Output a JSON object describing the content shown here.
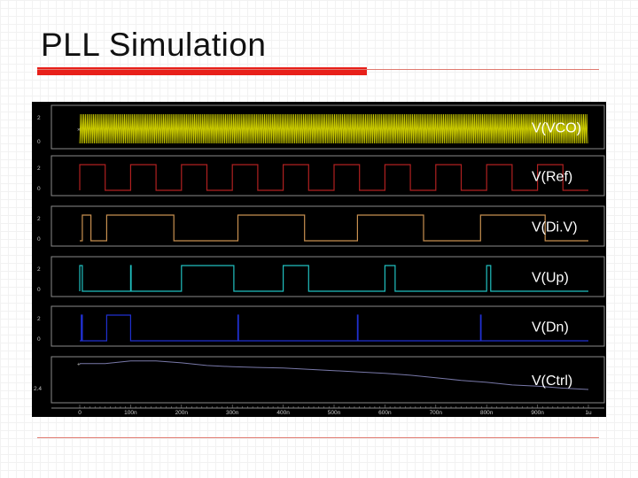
{
  "slide": {
    "title": "PLL Simulation"
  },
  "colors": {
    "background": "#000000",
    "panel_border": "#8a8a8a",
    "vco": "#c8c800",
    "ref": "#b02020",
    "div": "#c89050",
    "up": "#20c0c0",
    "dn": "#2030d0",
    "ctrl": "#7878a8",
    "accent": "#e8201a"
  },
  "chart_data": {
    "type": "line",
    "x_unit": "s",
    "x_range": [
      0,
      1e-06
    ],
    "x_ticks": [
      "0",
      "100n",
      "200n",
      "300n",
      "400n",
      "500n",
      "600n",
      "700n",
      "800n",
      "900n",
      "1u"
    ],
    "grid": false,
    "panels": [
      {
        "name": "V(VCO)",
        "y_ticks": [
          "2",
          "0"
        ],
        "kind": "oscillation",
        "high": 2,
        "low": 0
      },
      {
        "name": "V(Ref)",
        "y_ticks": [
          "2",
          "0"
        ],
        "kind": "square",
        "period_ns": 100,
        "duty": 0.5,
        "high": 2,
        "low": 0,
        "edges_ns": [
          0,
          50,
          100,
          150,
          200,
          250,
          300,
          350,
          400,
          450,
          500,
          550,
          600,
          650,
          700,
          750,
          800,
          850,
          900,
          950
        ]
      },
      {
        "name": "V(Di.V)",
        "y_ticks": [
          "2",
          "0"
        ],
        "kind": "segments",
        "high_intervals_ns": [
          [
            5,
            22
          ],
          [
            53,
            185
          ],
          [
            311,
            442
          ],
          [
            546,
            676
          ],
          [
            788,
            915
          ]
        ]
      },
      {
        "name": "V(Up)",
        "y_ticks": [
          "2",
          "0"
        ],
        "kind": "segments",
        "high_intervals_ns": [
          [
            0,
            5
          ],
          [
            100,
            101
          ],
          [
            200,
            303
          ],
          [
            400,
            450
          ],
          [
            600,
            620
          ],
          [
            800,
            808
          ]
        ]
      },
      {
        "name": "V(Dn)",
        "y_ticks": [
          "2",
          "0"
        ],
        "kind": "segments",
        "high_intervals_ns": [
          [
            3,
            5
          ],
          [
            53,
            100
          ],
          [
            311,
            312
          ],
          [
            546,
            547
          ],
          [
            788,
            789
          ]
        ]
      },
      {
        "name": "V(Ctrl)",
        "y_ticks": [
          "2.4"
        ],
        "kind": "analog",
        "y_range": [
          2.2,
          2.8
        ],
        "x_ns": [
          0,
          50,
          100,
          150,
          200,
          250,
          300,
          350,
          400,
          450,
          500,
          550,
          600,
          650,
          700,
          750,
          800,
          850,
          900,
          950,
          1000
        ],
        "y": [
          2.75,
          2.75,
          2.79,
          2.79,
          2.76,
          2.72,
          2.7,
          2.69,
          2.68,
          2.66,
          2.64,
          2.62,
          2.6,
          2.57,
          2.53,
          2.49,
          2.46,
          2.42,
          2.4,
          2.37,
          2.35
        ]
      }
    ]
  }
}
